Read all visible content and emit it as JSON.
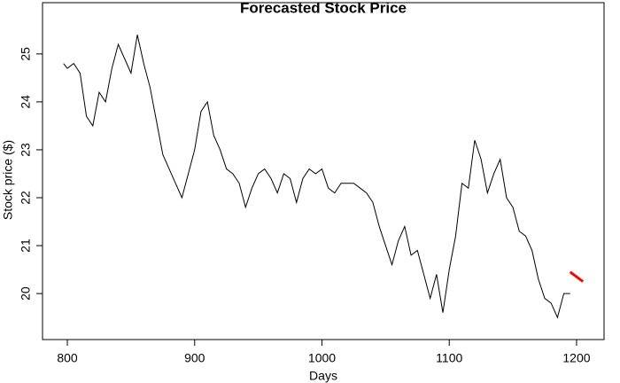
{
  "chart_data": {
    "type": "line",
    "title": "Forecasted Stock Price",
    "x_label": "Days",
    "y_label": "Stock price ($)",
    "x": [
      797,
      800,
      805,
      810,
      815,
      820,
      825,
      830,
      835,
      840,
      845,
      850,
      855,
      860,
      865,
      870,
      875,
      880,
      885,
      890,
      895,
      900,
      905,
      910,
      915,
      920,
      925,
      930,
      935,
      940,
      945,
      950,
      955,
      960,
      965,
      970,
      975,
      980,
      985,
      990,
      995,
      1000,
      1005,
      1010,
      1015,
      1020,
      1025,
      1030,
      1035,
      1040,
      1045,
      1050,
      1055,
      1060,
      1065,
      1070,
      1075,
      1080,
      1085,
      1090,
      1095,
      1100,
      1105,
      1110,
      1115,
      1120,
      1125,
      1130,
      1135,
      1140,
      1145,
      1150,
      1155,
      1160,
      1165,
      1170,
      1175,
      1180,
      1185,
      1190,
      1195,
      1200,
      1205
    ],
    "series": [
      {
        "color": "#000000",
        "values": [
          24.8,
          24.7,
          24.8,
          24.6,
          23.7,
          23.5,
          24.2,
          24.0,
          24.7,
          25.2,
          24.9,
          24.6,
          25.4,
          24.8,
          24.3,
          23.6,
          22.9,
          22.6,
          22.3,
          22.0,
          22.5,
          23.0,
          23.8,
          24.0,
          23.3,
          23.0,
          22.6,
          22.5,
          22.3,
          21.8,
          22.2,
          22.5,
          22.6,
          22.4,
          22.1,
          22.5,
          22.4,
          21.9,
          22.4,
          22.6,
          22.5,
          22.6,
          22.2,
          22.1,
          22.3,
          22.3,
          22.3,
          22.2,
          22.1,
          21.9,
          21.4,
          21.0,
          20.6,
          21.1,
          21.4,
          20.8,
          20.9,
          20.4,
          19.9,
          20.4,
          19.6,
          20.5,
          21.2,
          22.3,
          22.2,
          23.2,
          22.8,
          22.1,
          22.5,
          22.8,
          22.0,
          21.8,
          21.3,
          21.2,
          20.9,
          20.3,
          19.9,
          19.8,
          19.5,
          20.0,
          20.0,
          null,
          null
        ]
      },
      {
        "color": "#ff0000",
        "values": [
          null,
          null,
          null,
          null,
          null,
          null,
          null,
          null,
          null,
          null,
          null,
          null,
          null,
          null,
          null,
          null,
          null,
          null,
          null,
          null,
          null,
          null,
          null,
          null,
          null,
          null,
          null,
          null,
          null,
          null,
          null,
          null,
          null,
          null,
          null,
          null,
          null,
          null,
          null,
          null,
          null,
          null,
          null,
          null,
          null,
          null,
          null,
          null,
          null,
          null,
          null,
          null,
          null,
          null,
          null,
          null,
          null,
          null,
          null,
          null,
          null,
          null,
          null,
          null,
          null,
          null,
          null,
          null,
          null,
          null,
          null,
          null,
          null,
          null,
          null,
          null,
          null,
          null,
          null,
          null,
          20.45,
          20.35,
          20.25
        ]
      }
    ],
    "xlim": [
      780.5,
      1221.6
    ],
    "ylim": [
      19.04,
      26.07
    ],
    "xticks": [
      800,
      900,
      1000,
      1100,
      1200
    ],
    "yticks": [
      20,
      21,
      22,
      23,
      24,
      25
    ]
  }
}
